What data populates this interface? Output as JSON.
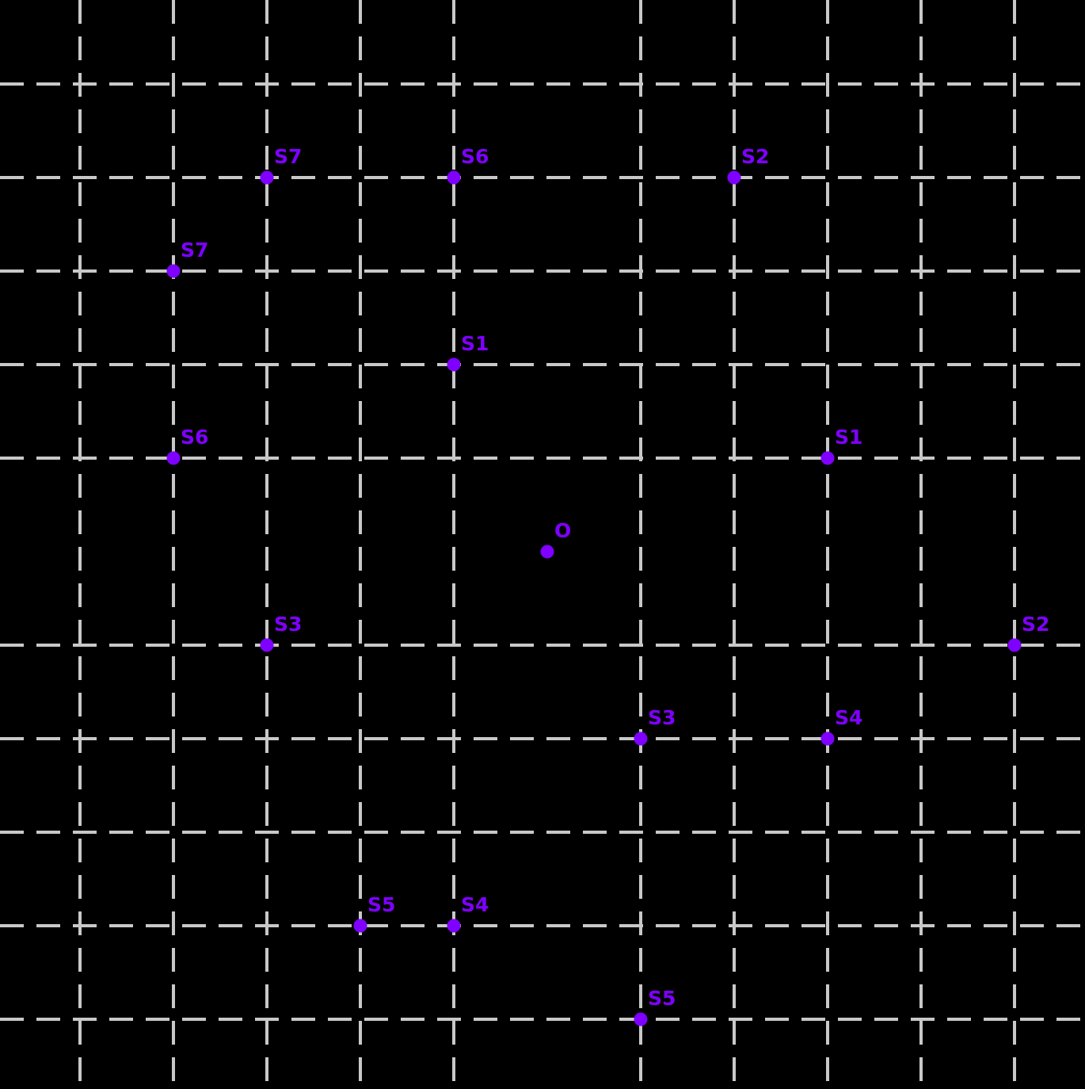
{
  "chart_data": {
    "type": "scatter",
    "title": "",
    "description": "Black-background coordinate grid with dashed gridlines; two sets of labeled positions S1-S7 plotted around an origin point O; axis lines through the origin are not drawn; no tick labels, no legend.",
    "axes": {
      "x_gridlines": [
        -5,
        -4,
        -3,
        -2,
        -1,
        1,
        2,
        3,
        4,
        5
      ],
      "y_gridlines": [
        -5,
        -4,
        -3,
        -2,
        -1,
        1,
        2,
        3,
        4,
        5
      ],
      "grid_spacing_units": 1,
      "grid_style": "dashed",
      "axis_lines_visible": false,
      "tick_labels_visible": false
    },
    "legend": "none",
    "points": [
      {
        "label": "S7",
        "x": -3,
        "y": 4
      },
      {
        "label": "S6",
        "x": -1,
        "y": 4
      },
      {
        "label": "S2",
        "x": 2,
        "y": 4
      },
      {
        "label": "S7",
        "x": -4,
        "y": 3
      },
      {
        "label": "S1",
        "x": -1,
        "y": 2
      },
      {
        "label": "S6",
        "x": -4,
        "y": 1
      },
      {
        "label": "S1",
        "x": 3,
        "y": 1
      },
      {
        "label": "O",
        "x": 0,
        "y": 0
      },
      {
        "label": "S3",
        "x": -3,
        "y": -1
      },
      {
        "label": "S2",
        "x": 5,
        "y": -1
      },
      {
        "label": "S3",
        "x": 1,
        "y": -2
      },
      {
        "label": "S4",
        "x": 3,
        "y": -2
      },
      {
        "label": "S5",
        "x": -2,
        "y": -4
      },
      {
        "label": "S4",
        "x": -1,
        "y": -4
      },
      {
        "label": "S5",
        "x": 1,
        "y": -5
      }
    ]
  },
  "style": {
    "background_color": "#000000",
    "grid_line_color": "#c8c8c8",
    "point_color": "#7f00ff",
    "label_color": "#7f00ff"
  }
}
